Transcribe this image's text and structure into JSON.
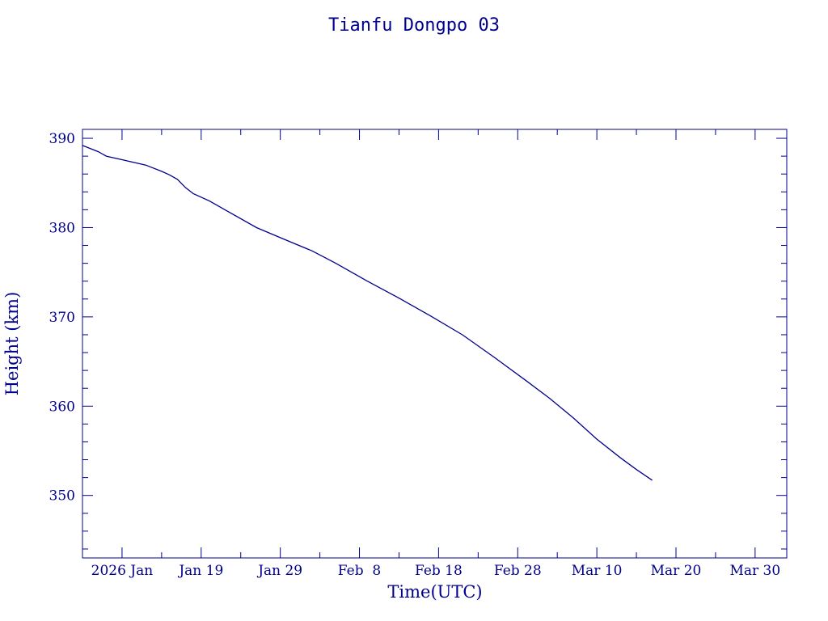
{
  "chart_data": {
    "type": "line",
    "title": "Tianfu Dongpo 03",
    "xlabel": "Time(UTC)",
    "ylabel": "Height (km)",
    "color": "#00008b",
    "grid": false,
    "legend": "none",
    "xlim": [
      "2026-01-04",
      "2026-04-03"
    ],
    "ylim": [
      343,
      391
    ],
    "yticks": [
      350,
      360,
      370,
      380,
      390
    ],
    "xticks": [
      {
        "date": "2026-01-09",
        "label": "2026 Jan"
      },
      {
        "date": "2026-01-19",
        "label": "Jan 19"
      },
      {
        "date": "2026-01-29",
        "label": "Jan 29"
      },
      {
        "date": "2026-02-08",
        "label": "Feb  8"
      },
      {
        "date": "2026-02-18",
        "label": "Feb 18"
      },
      {
        "date": "2026-02-28",
        "label": "Feb 28"
      },
      {
        "date": "2026-03-10",
        "label": "Mar 10"
      },
      {
        "date": "2026-03-20",
        "label": "Mar 20"
      },
      {
        "date": "2026-03-30",
        "label": "Mar 30"
      }
    ],
    "series": [
      {
        "x": [
          "2026-01-04",
          "2026-01-06",
          "2026-01-07",
          "2026-01-09",
          "2026-01-12",
          "2026-01-14",
          "2026-01-15",
          "2026-01-16",
          "2026-01-17",
          "2026-01-18",
          "2026-01-20",
          "2026-01-22",
          "2026-01-26",
          "2026-01-30",
          "2026-02-02",
          "2026-02-05",
          "2026-02-09",
          "2026-02-13",
          "2026-02-17",
          "2026-02-21",
          "2026-02-25",
          "2026-03-01",
          "2026-03-04",
          "2026-03-07",
          "2026-03-10",
          "2026-03-13",
          "2026-03-15",
          "2026-03-17"
        ],
        "y": [
          389.2,
          388.5,
          388.0,
          387.6,
          387.0,
          386.3,
          385.9,
          385.4,
          384.5,
          383.8,
          383.0,
          382.0,
          380.0,
          378.5,
          377.4,
          376.0,
          374.0,
          372.1,
          370.1,
          368.0,
          365.5,
          362.9,
          360.9,
          358.7,
          356.3,
          354.2,
          352.9,
          351.7
        ]
      }
    ]
  }
}
